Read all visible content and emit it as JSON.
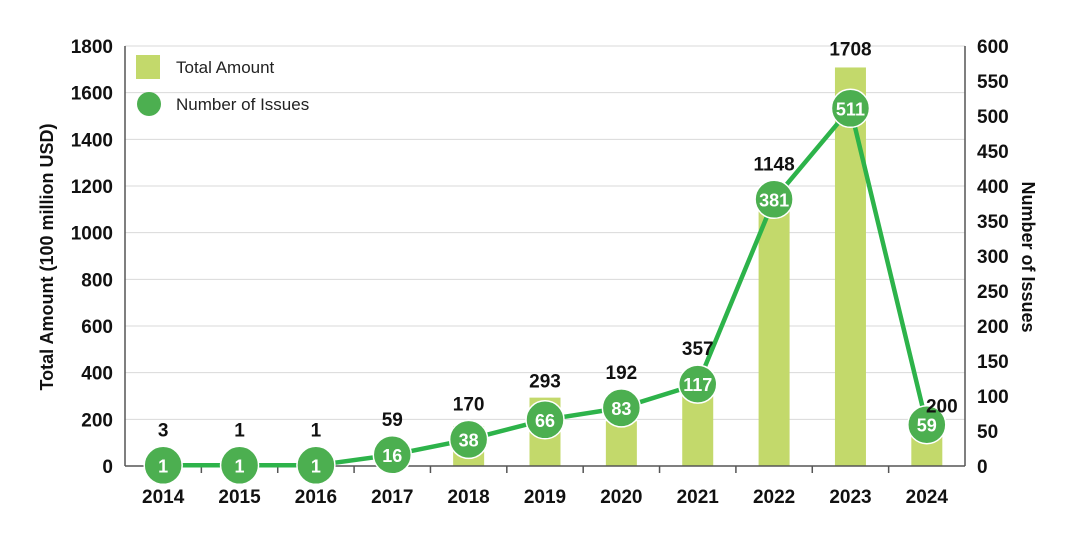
{
  "chart_data": {
    "type": "bar",
    "categories": [
      "2014",
      "2015",
      "2016",
      "2017",
      "2018",
      "2019",
      "2020",
      "2021",
      "2022",
      "2023",
      "2024"
    ],
    "series": [
      {
        "name": "Total Amount",
        "type": "bar",
        "axis": "left",
        "values": [
          3,
          1,
          1,
          59,
          170,
          293,
          192,
          357,
          1148,
          1708,
          200
        ],
        "labels": [
          "3",
          "1",
          "1",
          "59",
          "170",
          "293",
          "192",
          "357",
          "1148",
          "1708",
          "200"
        ]
      },
      {
        "name": "Number of Issues",
        "type": "line",
        "axis": "right",
        "values": [
          1,
          1,
          1,
          16,
          38,
          66,
          83,
          117,
          381,
          511,
          59
        ],
        "labels": [
          "1",
          "1",
          "1",
          "16",
          "38",
          "66",
          "83",
          "117",
          "381",
          "511",
          "59"
        ]
      }
    ],
    "ylabel": "Total Amount (100 million USD)",
    "y2label": "Number of Issues",
    "ylim": [
      0,
      1800
    ],
    "y2lim": [
      0,
      600
    ],
    "yticks": [
      "0",
      "200",
      "400",
      "600",
      "800",
      "1000",
      "1200",
      "1400",
      "1600",
      "1800"
    ],
    "y2ticks": [
      "0",
      "50",
      "100",
      "150",
      "200",
      "250",
      "300",
      "350",
      "400",
      "450",
      "500",
      "550",
      "600"
    ],
    "grid": true,
    "legend": "top-left",
    "colors": {
      "bar": "#c3d96b",
      "line": "#2db34a",
      "marker": "#4caf50",
      "grid": "#d9d9d9",
      "axis": "#555555"
    }
  }
}
